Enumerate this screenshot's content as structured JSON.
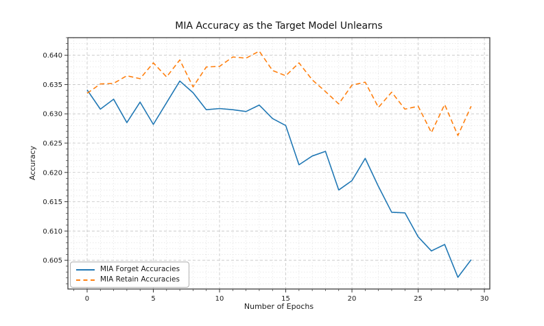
{
  "figure": {
    "title": "MIA Accuracy as the Target Model Unlearns",
    "xlabel": "Number of Epochs",
    "ylabel": "Accuracy",
    "background": "#ffffff"
  },
  "legend": {
    "entries": [
      {
        "label": "MIA Forget Accuracies",
        "color": "#1f77b4",
        "style": "solid"
      },
      {
        "label": "MIA Retain Accuracies",
        "color": "#ff7f0e",
        "style": "dashed"
      }
    ],
    "position": "lower left"
  },
  "chart_data": {
    "type": "line",
    "title": "MIA Accuracy as the Target Model Unlearns",
    "xlabel": "Number of Epochs",
    "ylabel": "Accuracy",
    "x": [
      0,
      1,
      2,
      3,
      4,
      5,
      6,
      7,
      8,
      9,
      10,
      11,
      12,
      13,
      14,
      15,
      16,
      17,
      18,
      19,
      20,
      21,
      22,
      23,
      24,
      25,
      26,
      27,
      28,
      29
    ],
    "series": [
      {
        "name": "MIA Forget Accuracies",
        "color": "#1f77b4",
        "linestyle": "solid",
        "values": [
          0.6341,
          0.6308,
          0.6325,
          0.6285,
          0.632,
          0.6282,
          0.6319,
          0.6356,
          0.6336,
          0.6307,
          0.6309,
          0.6307,
          0.6304,
          0.6315,
          0.6292,
          0.628,
          0.6213,
          0.6228,
          0.6236,
          0.617,
          0.6186,
          0.6224,
          0.6176,
          0.6132,
          0.6131,
          0.609,
          0.6066,
          0.6077,
          0.6021,
          0.6051
        ]
      },
      {
        "name": "MIA Retain Accuracies",
        "color": "#ff7f0e",
        "linestyle": "dashed",
        "values": [
          0.6335,
          0.6351,
          0.6352,
          0.6365,
          0.636,
          0.6387,
          0.6363,
          0.6392,
          0.6346,
          0.638,
          0.6381,
          0.6397,
          0.6395,
          0.6407,
          0.6374,
          0.6365,
          0.6387,
          0.6358,
          0.6338,
          0.6317,
          0.6349,
          0.6354,
          0.6311,
          0.6337,
          0.6308,
          0.6313,
          0.6268,
          0.6316,
          0.6263,
          0.6313
        ]
      }
    ],
    "xticks": [
      0,
      5,
      10,
      15,
      20,
      25,
      30
    ],
    "yticks": [
      0.605,
      0.61,
      0.615,
      0.62,
      0.625,
      0.63,
      0.635,
      0.64
    ],
    "xlim": [
      -1.45,
      30.41
    ],
    "ylim": [
      0.6001,
      0.643
    ],
    "grid": "major+minor",
    "minor_x_step": 1,
    "minor_y_step": 0.001,
    "legend_position": "lower left"
  }
}
